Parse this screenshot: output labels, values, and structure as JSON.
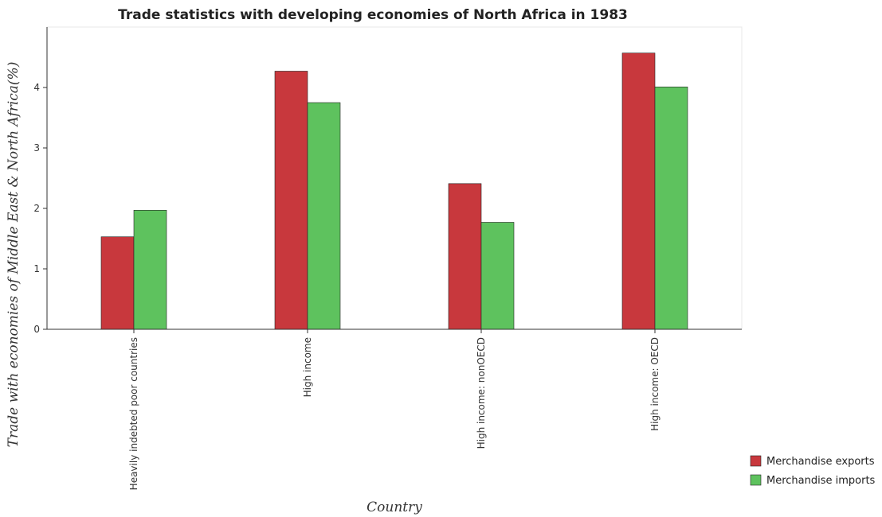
{
  "chart_data": {
    "type": "bar",
    "title": "Trade statistics with developing economies of North Africa in 1983",
    "xlabel": "Country",
    "ylabel": "Trade with economies of Middle East & North Africa(%)",
    "categories": [
      "Heavily indebted poor countries",
      "High income",
      "High income: nonOECD",
      "High income: OECD"
    ],
    "series": [
      {
        "name": "Merchandise exports",
        "color": "#c8383d",
        "values": [
          1.53,
          4.27,
          2.41,
          4.57
        ]
      },
      {
        "name": "Merchandise imports",
        "color": "#5ec25e",
        "values": [
          1.97,
          3.75,
          1.77,
          4.01
        ]
      }
    ],
    "ylim": [
      0,
      5
    ],
    "yticks": [
      0,
      1,
      2,
      3,
      4
    ],
    "grid": false,
    "legend_position": "bottom-right"
  }
}
